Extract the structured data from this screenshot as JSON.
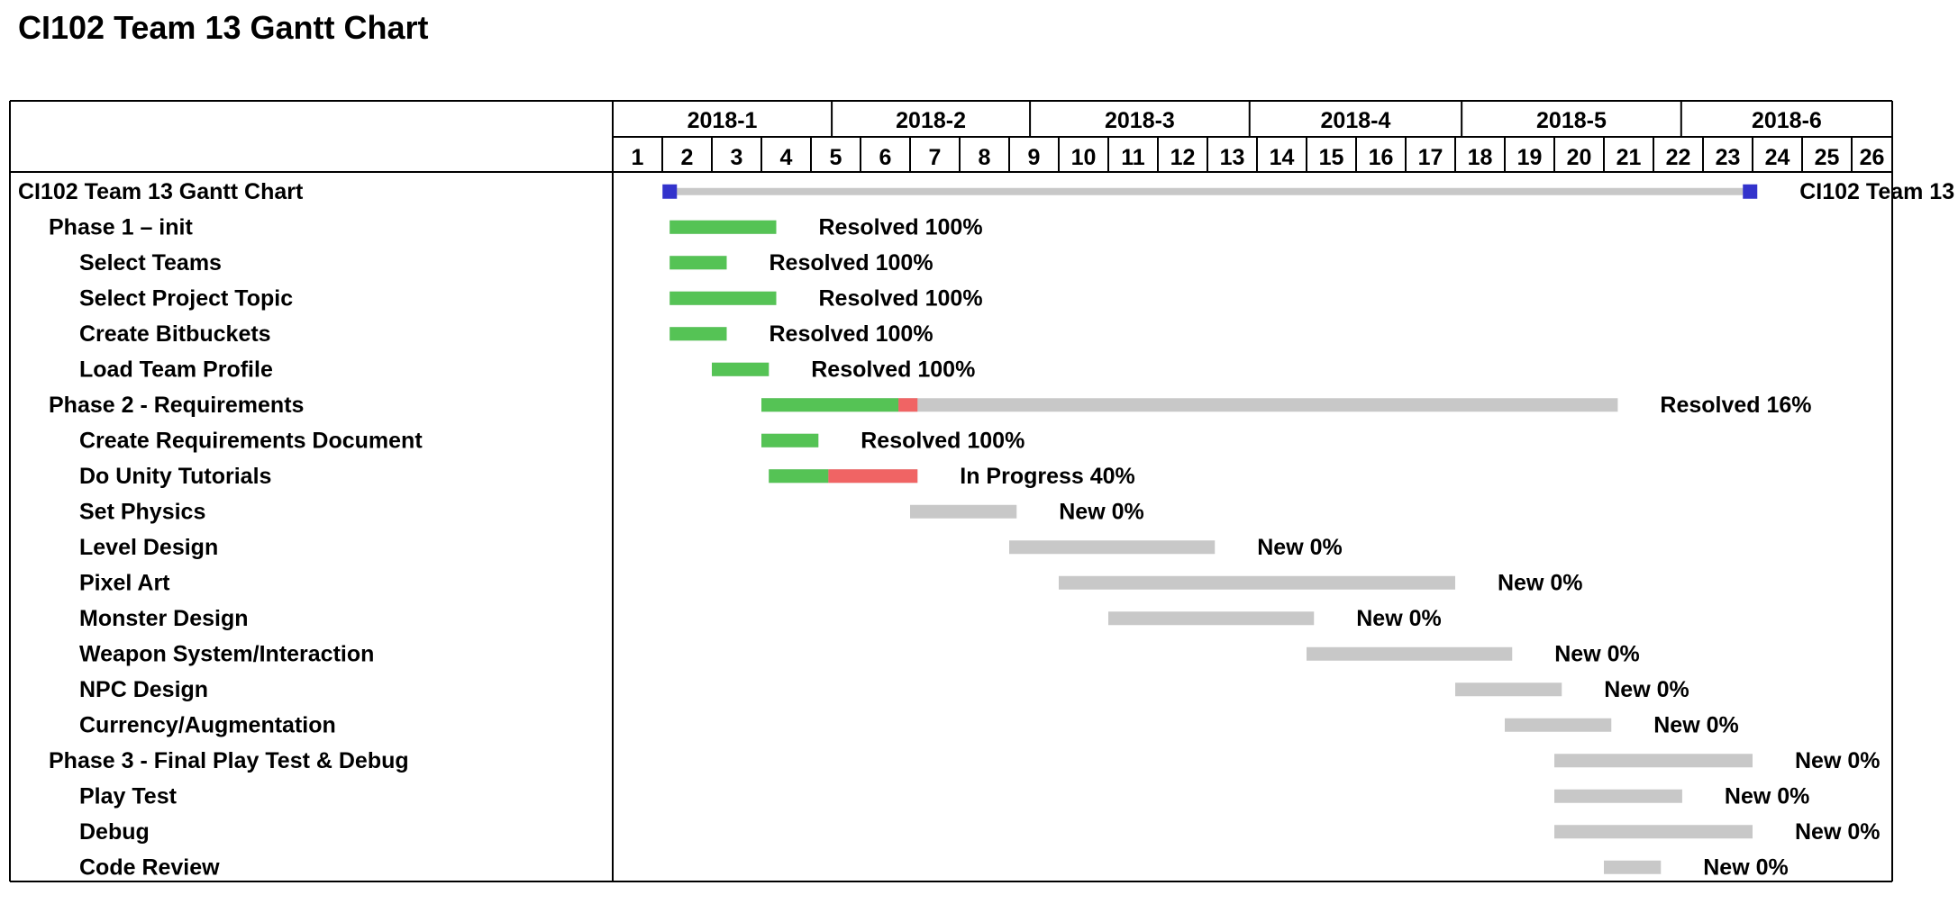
{
  "page_title": "CI102 Team 13 Gantt Chart",
  "chart_data": {
    "type": "gantt",
    "title": "CI102 Team 13 Gantt Chart",
    "months": [
      {
        "label": "2018-1",
        "start": 1,
        "end": 5.42
      },
      {
        "label": "2018-2",
        "start": 5.42,
        "end": 9.42
      },
      {
        "label": "2018-3",
        "start": 9.42,
        "end": 13.85
      },
      {
        "label": "2018-4",
        "start": 13.85,
        "end": 18.13
      },
      {
        "label": "2018-5",
        "start": 18.13,
        "end": 22.56
      },
      {
        "label": "2018-6",
        "start": 22.56,
        "end": 26.85
      }
    ],
    "weeks": [
      "1",
      "2",
      "3",
      "4",
      "5",
      "6",
      "7",
      "8",
      "9",
      "10",
      "11",
      "12",
      "13",
      "14",
      "15",
      "16",
      "17",
      "18",
      "19",
      "20",
      "21",
      "22",
      "23",
      "24",
      "25",
      "26"
    ],
    "colors": {
      "done": "#55c355",
      "overdue": "#f06464",
      "remaining": "#c8c8c8",
      "milestone": "#3333cc",
      "grid": "#000000"
    },
    "tasks": [
      {
        "name": "CI102 Team 13 Gantt Chart",
        "level": 0,
        "type": "summary",
        "start": 2.15,
        "end": 23.95,
        "label": "CI102 Team 13"
      },
      {
        "name": "Phase 1 – init",
        "level": 1,
        "start": 2.15,
        "end": 4.3,
        "progress": 1.0,
        "status": "Resolved 100%"
      },
      {
        "name": "Select Teams",
        "level": 2,
        "start": 2.15,
        "end": 3.3,
        "progress": 1.0,
        "status": "Resolved 100%"
      },
      {
        "name": "Select Project Topic",
        "level": 2,
        "start": 2.15,
        "end": 4.3,
        "progress": 1.0,
        "status": "Resolved 100%"
      },
      {
        "name": "Create Bitbuckets",
        "level": 2,
        "start": 2.15,
        "end": 3.3,
        "progress": 1.0,
        "status": "Resolved 100%"
      },
      {
        "name": "Load Team Profile",
        "level": 2,
        "start": 3.0,
        "end": 4.15,
        "progress": 1.0,
        "status": "Resolved 100%"
      },
      {
        "name": "Phase 2 - Requirements",
        "level": 1,
        "start": 4.0,
        "end": 21.28,
        "progress": 0.16,
        "overdue_until": 7.15,
        "status": "Resolved 16%"
      },
      {
        "name": "Create Requirements Document",
        "level": 2,
        "start": 4.0,
        "end": 5.15,
        "progress": 1.0,
        "status": "Resolved 100%"
      },
      {
        "name": "Do Unity Tutorials",
        "level": 2,
        "start": 4.15,
        "end": 7.15,
        "progress": 0.4,
        "overdue_until": 7.15,
        "status": "In Progress 40%"
      },
      {
        "name": "Set Physics",
        "level": 2,
        "start": 7.0,
        "end": 9.15,
        "progress": 0,
        "status": "New 0%"
      },
      {
        "name": "Level Design",
        "level": 2,
        "start": 9.0,
        "end": 13.15,
        "progress": 0,
        "status": "New 0%"
      },
      {
        "name": "Pixel Art",
        "level": 2,
        "start": 10.0,
        "end": 18.0,
        "progress": 0,
        "status": "New 0%"
      },
      {
        "name": "Monster Design",
        "level": 2,
        "start": 11.0,
        "end": 15.15,
        "progress": 0,
        "status": "New 0%"
      },
      {
        "name": "Weapon System/Interaction",
        "level": 2,
        "start": 15.0,
        "end": 19.15,
        "progress": 0,
        "status": "New 0%"
      },
      {
        "name": "NPC Design",
        "level": 2,
        "start": 18.0,
        "end": 20.15,
        "progress": 0,
        "status": "New 0%"
      },
      {
        "name": "Currency/Augmentation",
        "level": 2,
        "start": 19.0,
        "end": 21.15,
        "progress": 0,
        "status": "New 0%"
      },
      {
        "name": "Phase 3 - Final Play Test & Debug",
        "level": 1,
        "start": 20.0,
        "end": 24.0,
        "progress": 0,
        "status": "New 0%"
      },
      {
        "name": "Play Test",
        "level": 2,
        "start": 20.0,
        "end": 22.58,
        "progress": 0,
        "status": "New 0%"
      },
      {
        "name": "Debug",
        "level": 2,
        "start": 20.0,
        "end": 24.0,
        "progress": 0,
        "status": "New 0%"
      },
      {
        "name": "Code Review",
        "level": 2,
        "start": 21.0,
        "end": 22.15,
        "progress": 0,
        "status": "New 0%"
      }
    ]
  }
}
